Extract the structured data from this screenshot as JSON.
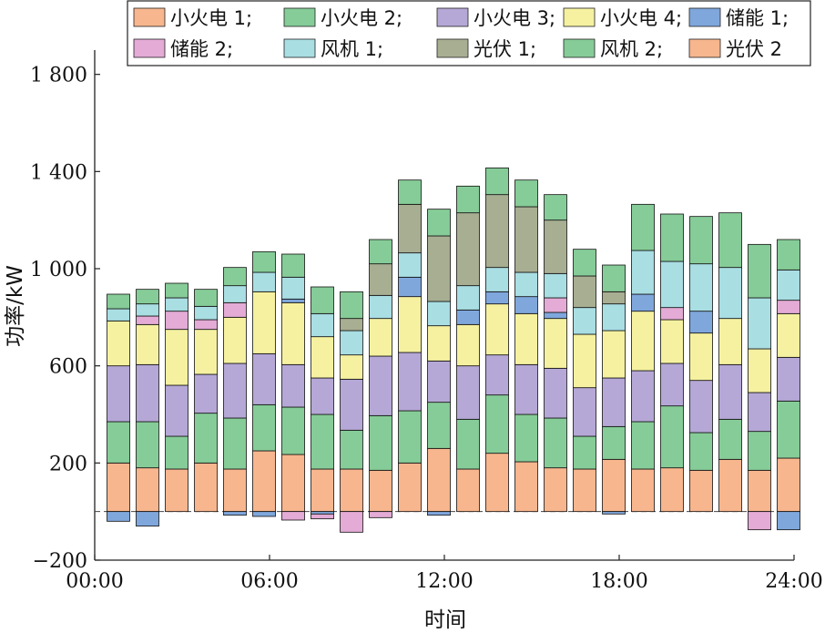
{
  "chart_data": {
    "type": "bar",
    "stacked": true,
    "xlabel": "时间",
    "ylabel": "功率/kW",
    "ylim": [
      -200,
      1900
    ],
    "yticks": [
      -200,
      200,
      600,
      1000,
      1400,
      1800
    ],
    "ytick_labels": [
      "−200",
      "200",
      "600",
      "1 000",
      "1 400",
      "1 800"
    ],
    "xlim": [
      0,
      24
    ],
    "xticks": [
      0,
      6,
      12,
      18,
      24
    ],
    "xtick_labels": [
      "00:00",
      "06:00",
      "12:00",
      "18:00",
      "24:00"
    ],
    "x_hours": [
      1,
      2,
      3,
      4,
      5,
      6,
      7,
      8,
      9,
      10,
      11,
      12,
      13,
      14,
      15,
      16,
      17,
      18,
      19,
      20,
      21,
      22,
      23,
      24
    ],
    "legend_position": "top",
    "grid": false,
    "series": [
      {
        "name": "小火电 1",
        "legend_label": "小火电 1;",
        "color": "#F7B68E",
        "values": [
          200,
          180,
          175,
          200,
          175,
          250,
          235,
          175,
          175,
          170,
          200,
          260,
          175,
          240,
          205,
          180,
          175,
          215,
          175,
          180,
          170,
          215,
          170,
          220
        ]
      },
      {
        "name": "小火电 2",
        "legend_label": "小火电 2;",
        "color": "#86CC98",
        "values": [
          170,
          190,
          135,
          205,
          210,
          190,
          195,
          225,
          160,
          225,
          215,
          190,
          205,
          240,
          195,
          205,
          135,
          135,
          195,
          255,
          155,
          165,
          160,
          235
        ]
      },
      {
        "name": "小火电 3",
        "legend_label": "小火电 3;",
        "color": "#B5A8D6",
        "values": [
          230,
          235,
          210,
          160,
          225,
          210,
          175,
          150,
          210,
          245,
          240,
          170,
          220,
          165,
          205,
          205,
          200,
          200,
          210,
          175,
          215,
          225,
          160,
          180
        ]
      },
      {
        "name": "小火电 4",
        "legend_label": "小火电 4;",
        "color": "#F5F1A0",
        "values": [
          185,
          165,
          230,
          185,
          190,
          255,
          255,
          170,
          100,
          155,
          230,
          145,
          170,
          210,
          210,
          205,
          220,
          195,
          245,
          180,
          195,
          190,
          180,
          180
        ]
      },
      {
        "name": "储能 1",
        "legend_label": "储能 1;",
        "color": "#7FA7DC",
        "values": [
          -40,
          -60,
          0,
          0,
          -15,
          -20,
          15,
          -10,
          0,
          0,
          80,
          -15,
          60,
          50,
          70,
          25,
          0,
          -10,
          70,
          0,
          90,
          0,
          0,
          -75
        ]
      },
      {
        "name": "储能 2",
        "legend_label": "储能 2;",
        "color": "#E3ABD5",
        "values": [
          0,
          35,
          75,
          40,
          60,
          0,
          -35,
          -20,
          -85,
          -25,
          0,
          0,
          0,
          0,
          0,
          60,
          0,
          0,
          0,
          50,
          0,
          0,
          -75,
          55
        ]
      },
      {
        "name": "风机 1",
        "legend_label": "风机 1;",
        "color": "#A9DEE3",
        "values": [
          50,
          50,
          55,
          55,
          70,
          80,
          90,
          95,
          100,
          95,
          100,
          100,
          100,
          100,
          100,
          100,
          110,
          110,
          180,
          190,
          195,
          210,
          210,
          125
        ]
      },
      {
        "name": "光伏 1",
        "legend_label": "光伏 1;",
        "color": "#A8AE92",
        "values": [
          0,
          0,
          0,
          0,
          0,
          0,
          0,
          0,
          50,
          130,
          200,
          270,
          300,
          300,
          270,
          220,
          130,
          50,
          0,
          0,
          0,
          0,
          0,
          0
        ]
      },
      {
        "name": "风机 2",
        "legend_label": "风机 2;",
        "color": "#86CC98",
        "values": [
          60,
          60,
          60,
          70,
          75,
          85,
          95,
          110,
          110,
          100,
          100,
          110,
          110,
          110,
          110,
          105,
          110,
          110,
          190,
          195,
          195,
          225,
          220,
          125
        ]
      },
      {
        "name": "光伏 2",
        "legend_label": "光伏 2",
        "color": "#F7B68E",
        "values": [
          0,
          0,
          0,
          0,
          0,
          0,
          0,
          0,
          0,
          0,
          0,
          0,
          0,
          0,
          0,
          0,
          0,
          0,
          0,
          0,
          0,
          0,
          0,
          0
        ]
      }
    ]
  }
}
